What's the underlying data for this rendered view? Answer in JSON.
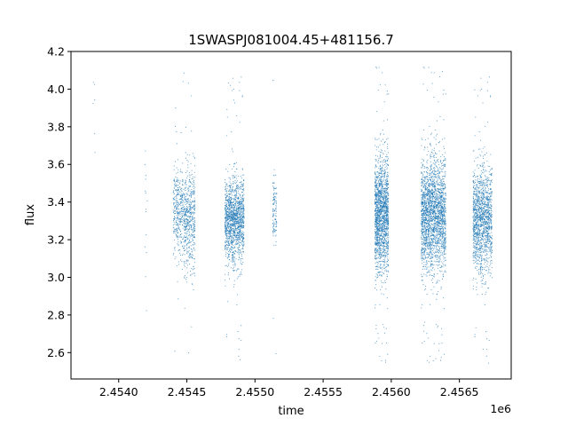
{
  "chart_data": {
    "type": "scatter",
    "title": "1SWASPJ081004.45+481156.7",
    "xlabel": "time",
    "ylabel": "flux",
    "x_offset_label": "1e6",
    "xlim": [
      2.45365,
      2.45688
    ],
    "ylim": [
      2.46,
      4.2
    ],
    "x_ticks": [
      2.454,
      2.4545,
      2.455,
      2.4555,
      2.456,
      2.4565
    ],
    "x_tick_labels": [
      "2.4540",
      "2.4545",
      "2.4550",
      "2.4555",
      "2.4560",
      "2.4565"
    ],
    "y_ticks": [
      2.6,
      2.8,
      3.0,
      3.2,
      3.4,
      3.6,
      3.8,
      4.0,
      4.2
    ],
    "y_tick_labels": [
      "2.6",
      "2.8",
      "3.0",
      "3.2",
      "3.4",
      "3.6",
      "3.8",
      "4.0",
      "4.2"
    ],
    "grid": false,
    "point_color": "#1f77b4",
    "series_clusters": [
      {
        "x_min": 2.45381,
        "x_max": 2.45383,
        "y_center": 3.95,
        "y_spread": 0.18,
        "count": 6
      },
      {
        "x_min": 2.45419,
        "x_max": 2.45421,
        "y_center": 3.4,
        "y_spread": 0.22,
        "count": 14
      },
      {
        "x_min": 2.4544,
        "x_max": 2.45448,
        "y_center": 3.35,
        "y_spread": 0.11,
        "count": 380
      },
      {
        "x_min": 2.45448,
        "x_max": 2.45456,
        "y_center": 3.3,
        "y_spread": 0.14,
        "count": 520
      },
      {
        "x_min": 2.45478,
        "x_max": 2.45492,
        "y_center": 3.3,
        "y_spread": 0.11,
        "count": 1500
      },
      {
        "x_min": 2.45513,
        "x_max": 2.45516,
        "y_center": 3.35,
        "y_spread": 0.09,
        "count": 120
      },
      {
        "x_min": 2.45588,
        "x_max": 2.45598,
        "y_center": 3.33,
        "y_spread": 0.15,
        "count": 1700
      },
      {
        "x_min": 2.45622,
        "x_max": 2.4564,
        "y_center": 3.33,
        "y_spread": 0.15,
        "count": 2300
      },
      {
        "x_min": 2.4566,
        "x_max": 2.45674,
        "y_center": 3.3,
        "y_spread": 0.14,
        "count": 1500
      }
    ]
  }
}
